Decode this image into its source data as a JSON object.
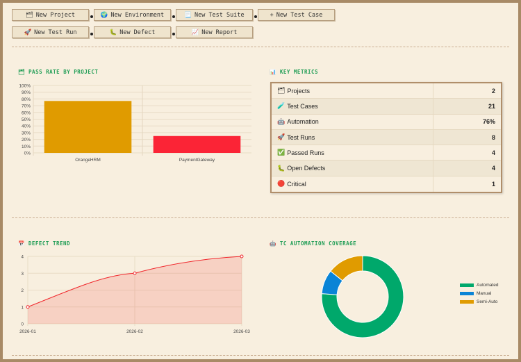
{
  "toolbar": {
    "buttons": [
      {
        "icon": "🗂",
        "label": "New Project"
      },
      {
        "icon": "🌍",
        "label": "New Environment"
      },
      {
        "icon": "📃",
        "label": "New Test Suite"
      },
      {
        "icon": "+",
        "label": "New Test Case"
      },
      {
        "icon": "🚀",
        "label": "New Test Run"
      },
      {
        "icon": "🐛",
        "label": "New Defect"
      },
      {
        "icon": "📈",
        "label": "New Report"
      }
    ]
  },
  "sections": {
    "pass_rate": {
      "icon": "🗂",
      "title": "PASS RATE BY PROJECT"
    },
    "key_metrics": {
      "icon": "📊",
      "title": "KEY METRICS"
    },
    "defect_trend": {
      "icon": "📅",
      "title": "DEFECT TREND"
    },
    "coverage": {
      "icon": "🤖",
      "title": "TC AUTOMATION COVERAGE"
    }
  },
  "metrics": [
    {
      "icon": "🗂",
      "label": "Projects",
      "value": "2"
    },
    {
      "icon": "🧪",
      "label": "Test Cases",
      "value": "21"
    },
    {
      "icon": "🤖",
      "label": "Automation",
      "value": "76%"
    },
    {
      "icon": "🚀",
      "label": "Test Runs",
      "value": "8"
    },
    {
      "icon": "✅",
      "label": "Passed Runs",
      "value": "4"
    },
    {
      "icon": "🐛",
      "label": "Open Defects",
      "value": "4"
    },
    {
      "icon": "🔴",
      "label": "Critical",
      "value": "1"
    }
  ],
  "chart_data": [
    {
      "type": "bar",
      "title": "PASS RATE BY PROJECT",
      "categories": [
        "OrangeHRM",
        "PaymentGateway"
      ],
      "values": [
        77,
        25
      ],
      "colors": [
        "#e09b00",
        "#fb2436"
      ],
      "ylim": [
        0,
        100
      ],
      "yticks": [
        "0%",
        "10%",
        "20%",
        "30%",
        "40%",
        "50%",
        "60%",
        "70%",
        "80%",
        "90%",
        "100%"
      ]
    },
    {
      "type": "area",
      "title": "DEFECT TREND",
      "x": [
        "2026-01",
        "2026-02",
        "2026-03"
      ],
      "values": [
        1,
        3,
        4
      ],
      "ylim": [
        0,
        4
      ],
      "yticks": [
        "0",
        "1",
        "2",
        "3",
        "4"
      ],
      "color": "#f0262b"
    },
    {
      "type": "pie",
      "title": "TC AUTOMATION COVERAGE",
      "labels": [
        "Automated",
        "Manual",
        "Semi-Auto"
      ],
      "values": [
        16,
        2,
        3
      ],
      "colors": [
        "#00a86b",
        "#0a84d6",
        "#e09b00"
      ]
    }
  ]
}
